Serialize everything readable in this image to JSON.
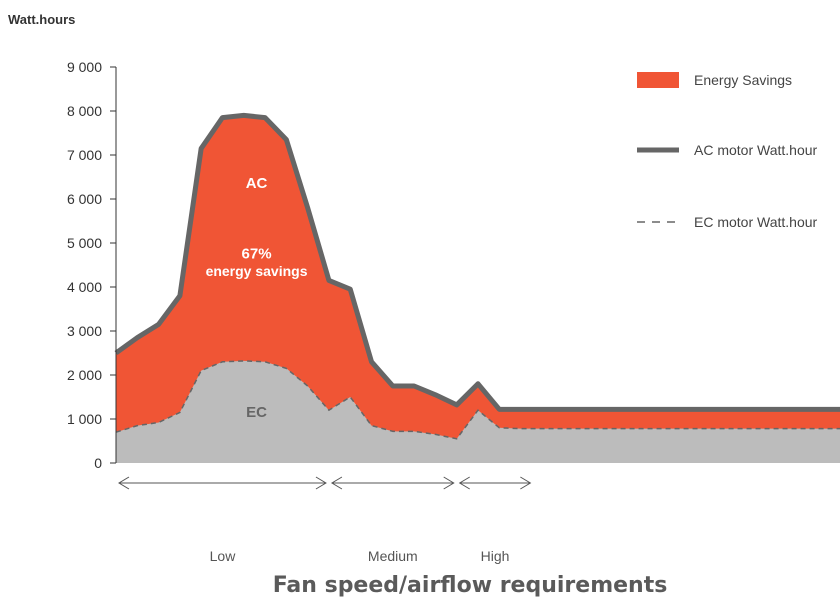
{
  "chart_data": {
    "type": "area",
    "ylabel": "Watt.hours",
    "xlabel": "Fan speed/airflow requirements",
    "ylim": [
      0,
      9000
    ],
    "yticks": [
      "0",
      "1 000",
      "2 000",
      "3 000",
      "4 000",
      "5 000",
      "6 000",
      "7 000",
      "8 000",
      "9 000"
    ],
    "y_tick_values": [
      0,
      1000,
      2000,
      3000,
      4000,
      5000,
      6000,
      7000,
      8000,
      9000
    ],
    "grid": false,
    "legend_position": "top-right",
    "legend": [
      {
        "label": "Energy Savings",
        "kind": "swatch",
        "color": "#f05535"
      },
      {
        "label": "AC motor Watt.hour",
        "kind": "solid-line",
        "color": "#666666"
      },
      {
        "label": "EC motor Watt.hour",
        "kind": "dashed-line",
        "color": "#666666"
      }
    ],
    "x": [
      0,
      1,
      2,
      3,
      4,
      5,
      6,
      7,
      8,
      9,
      10,
      11,
      12,
      13,
      14,
      15,
      16,
      17,
      18,
      19,
      20,
      21,
      22,
      23,
      24,
      25,
      26,
      27,
      28,
      29,
      30,
      31,
      32,
      33,
      34
    ],
    "x_range": [
      0,
      34
    ],
    "series": [
      {
        "name": "AC motor Watt.hour",
        "color": "#666666",
        "fill": "#f05535",
        "values": [
          2500,
          2850,
          3150,
          3800,
          7150,
          7850,
          7900,
          7850,
          7350,
          5800,
          4150,
          3950,
          2300,
          1750,
          1750,
          1550,
          1320,
          1800,
          1220,
          1220,
          1220,
          1220,
          1220,
          1220,
          1220,
          1220,
          1220,
          1220,
          1220,
          1220,
          1220,
          1220,
          1220,
          1220,
          1220
        ]
      },
      {
        "name": "EC motor Watt.hour",
        "color": "#666666",
        "fill": "#bcbcbc",
        "values": [
          700,
          850,
          920,
          1150,
          2100,
          2300,
          2320,
          2300,
          2150,
          1750,
          1200,
          1500,
          850,
          720,
          720,
          650,
          550,
          1200,
          800,
          780,
          780,
          780,
          780,
          780,
          780,
          780,
          780,
          780,
          780,
          780,
          780,
          780,
          780,
          780,
          780
        ]
      }
    ],
    "annotations": [
      {
        "text": "AC",
        "x": 6.6,
        "y": 6250,
        "style": "white"
      },
      {
        "text": "67%",
        "x": 6.6,
        "y": 4650,
        "style": "white"
      },
      {
        "text": "energy savings",
        "x": 6.6,
        "y": 4250,
        "style": "white"
      },
      {
        "text": "EC",
        "x": 6.6,
        "y": 1050,
        "style": "gray"
      }
    ],
    "regions": [
      {
        "label": "Low",
        "from": 0,
        "to": 10
      },
      {
        "label": "Medium",
        "from": 10,
        "to": 16
      },
      {
        "label": "High",
        "from": 16,
        "to": 19.6
      }
    ]
  }
}
